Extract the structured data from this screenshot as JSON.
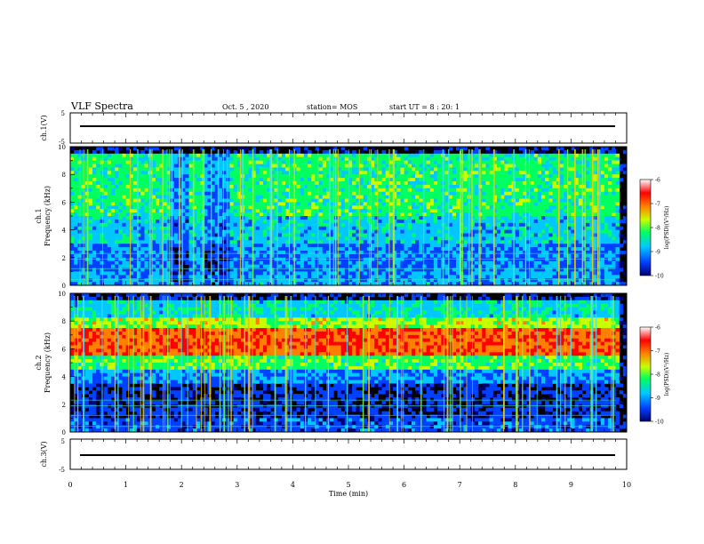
{
  "header": {
    "title": "VLF Spectra",
    "date": "Oct. 5 , 2020",
    "station": "station= MOS",
    "start": "start UT = 8 : 20: 1"
  },
  "chart_data": [
    {
      "type": "line",
      "panel": "ch1-waveform",
      "ylabel": "ch.1(V)",
      "ylim": [
        -5,
        5
      ],
      "y_ticks": [
        "5",
        "-5"
      ],
      "x": [
        0,
        9.8
      ],
      "series": [
        {
          "values": [
            0,
            0
          ]
        }
      ]
    },
    {
      "type": "heatmap",
      "panel": "ch1-spectrogram",
      "ylabel_top": "ch.1",
      "ylabel": "Frequency (kHz)",
      "xlim": [
        0,
        10
      ],
      "ylim": [
        0,
        10
      ],
      "y_ticks": [
        "0",
        "2",
        "4",
        "6",
        "8",
        "10"
      ],
      "colorbar": {
        "label": "log(PSD)(V²/Hz)",
        "range": [
          -10,
          -6
        ],
        "ticks": [
          "-6",
          "-7",
          "-8",
          "-9",
          "-10"
        ],
        "colors": [
          "#000070",
          "#0040ff",
          "#00c8ff",
          "#00ff60",
          "#c8ff00",
          "#ff8000",
          "#ff0000",
          "#ffffff"
        ]
      },
      "dominant_band_khz": [
        5.5,
        9.5
      ],
      "quiet_regions_min": [
        [
          1.8,
          2.1
        ],
        [
          2.4,
          2.8
        ]
      ]
    },
    {
      "type": "heatmap",
      "panel": "ch2-spectrogram",
      "ylabel_top": "ch.2",
      "ylabel": "Frequency (kHz)",
      "xlim": [
        0,
        10
      ],
      "ylim": [
        0,
        10
      ],
      "y_ticks": [
        "0",
        "2",
        "4",
        "6",
        "8",
        "10"
      ],
      "colorbar": {
        "label": "log(PSD)(V²/Hz)",
        "range": [
          -10,
          -6
        ],
        "ticks": [
          "-6",
          "-7",
          "-8",
          "-9",
          "-10"
        ],
        "colors": [
          "#000070",
          "#0040ff",
          "#00c8ff",
          "#00ff60",
          "#c8ff00",
          "#ff8000",
          "#ff0000",
          "#ffffff"
        ]
      },
      "dominant_band_khz": [
        5.5,
        7.5
      ]
    },
    {
      "type": "line",
      "panel": "ch3-waveform",
      "ylabel": "ch.3(V)",
      "xlabel": "Time (min)",
      "xlim": [
        0,
        10
      ],
      "ylim": [
        -5,
        5
      ],
      "y_ticks": [
        "5",
        "-5"
      ],
      "x_ticks": [
        "0",
        "1",
        "2",
        "3",
        "4",
        "5",
        "6",
        "7",
        "8",
        "9",
        "10"
      ],
      "x": [
        0,
        9.8
      ],
      "series": [
        {
          "values": [
            0,
            0
          ]
        }
      ]
    }
  ]
}
